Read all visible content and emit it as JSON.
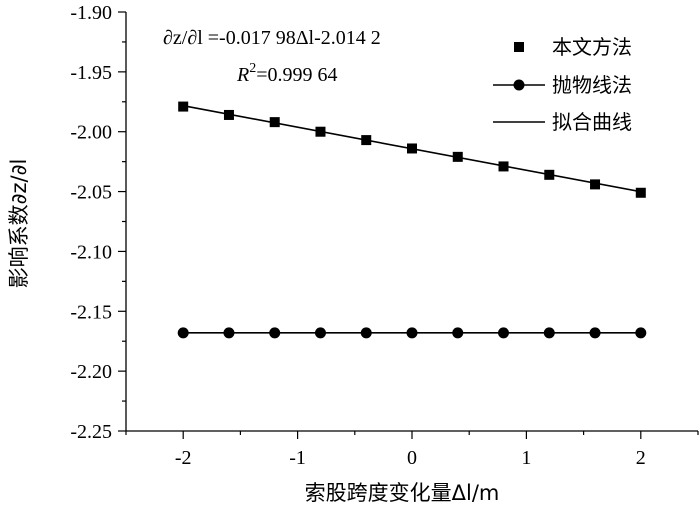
{
  "chart_data": {
    "type": "line",
    "xlabel": "索股跨度变化量Δl/m",
    "ylabel": "影响系数∂z/∂l",
    "xlim": [
      -2.5,
      2.5
    ],
    "ylim": [
      -2.25,
      -1.9
    ],
    "xticks": [
      -2,
      -1,
      0,
      1,
      2
    ],
    "xtick_labels": [
      "-2",
      "-1",
      "0",
      "1",
      "2"
    ],
    "yticks": [
      -1.9,
      -1.95,
      -2.0,
      -2.05,
      -2.1,
      -2.15,
      -2.2,
      -2.25
    ],
    "ytick_labels": [
      "-1.90",
      "-1.95",
      "-2.00",
      "-2.05",
      "-2.10",
      "-2.15",
      "-2.20",
      "-2.25"
    ],
    "annotations": [
      "∂z/∂l =-0.017 98Δl-2.014 2",
      "R2=0.999 64"
    ],
    "legend_position": "top-right",
    "series": [
      {
        "name": "本文方法",
        "marker": "square",
        "x": [
          -2,
          -1.6,
          -1.2,
          -0.8,
          -0.4,
          0,
          0.4,
          0.8,
          1.2,
          1.6,
          2
        ],
        "y": [
          -1.979,
          -1.986,
          -1.992,
          -2.0,
          -2.007,
          -2.014,
          -2.021,
          -2.029,
          -2.036,
          -2.044,
          -2.051
        ]
      },
      {
        "name": "抛物线法",
        "marker": "circle",
        "x": [
          -2,
          -1.6,
          -1.2,
          -0.8,
          -0.4,
          0,
          0.4,
          0.8,
          1.2,
          1.6,
          2
        ],
        "y": [
          -2.168,
          -2.168,
          -2.168,
          -2.168,
          -2.168,
          -2.168,
          -2.168,
          -2.168,
          -2.168,
          -2.168,
          -2.168
        ]
      },
      {
        "name": "拟合曲线",
        "marker": "none",
        "x": [
          -2,
          2
        ],
        "y": [
          -1.97824,
          -2.05016
        ]
      }
    ]
  }
}
